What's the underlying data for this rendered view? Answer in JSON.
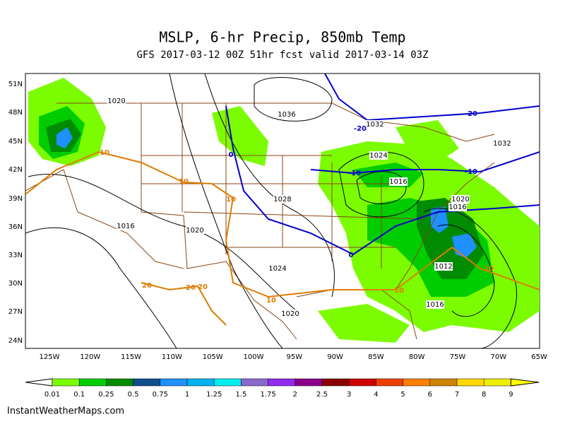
{
  "header": {
    "title": "MSLP, 6-hr Precip, 850mb Temp",
    "subtitle": "GFS 2017-03-12 00Z 51hr fcst valid 2017-03-14 03Z"
  },
  "map": {
    "lat_labels": [
      "51N",
      "48N",
      "45N",
      "42N",
      "39N",
      "36N",
      "33N",
      "30N",
      "27N",
      "24N"
    ],
    "lon_labels": [
      "125W",
      "120W",
      "115W",
      "110W",
      "105W",
      "100W",
      "95W",
      "90W",
      "85W",
      "80W",
      "75W",
      "70W",
      "65W"
    ],
    "pressure_labels": [
      "1020",
      "1036",
      "1032",
      "1032",
      "1024",
      "1016",
      "1028",
      "1020",
      "1016",
      "1016",
      "1020",
      "1024",
      "1012",
      "1020",
      "1016"
    ],
    "cold_isotherm_labels": [
      "-20",
      "-20",
      "-10",
      "-10",
      "0",
      "0"
    ],
    "warm_isotherm_labels": [
      "10",
      "10",
      "10",
      "10",
      "10",
      "10",
      "20",
      "20",
      "20"
    ]
  },
  "legend": {
    "labels": [
      "0.01",
      "0.1",
      "0.25",
      "0.5",
      "0.75",
      "1",
      "1.25",
      "1.5",
      "1.75",
      "2",
      "2.5",
      "3",
      "4",
      "5",
      "6",
      "7",
      "8",
      "9"
    ]
  },
  "footer": "InstantWeatherMaps.com"
}
